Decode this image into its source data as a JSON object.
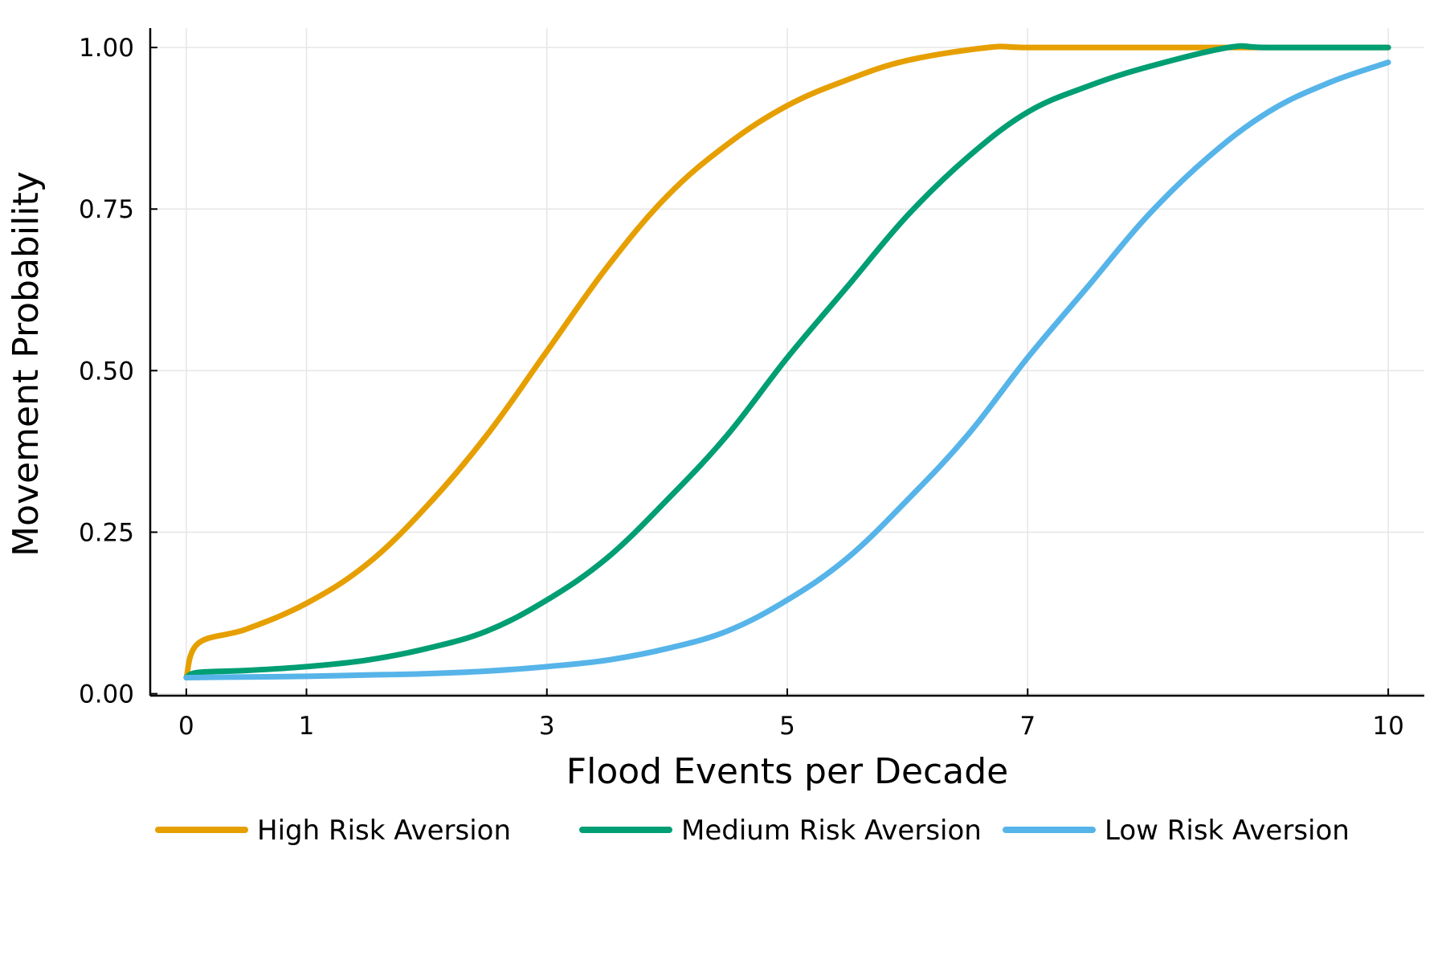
{
  "chart_data": {
    "type": "line",
    "title": "",
    "xlabel": "Flood Events per Decade",
    "ylabel": "Movement Probability",
    "xlim": [
      -0.3,
      10.3
    ],
    "ylim": [
      -0.003,
      1.03
    ],
    "xticks": [
      0,
      1,
      3,
      5,
      7,
      10
    ],
    "xtick_labels": [
      "0",
      "1",
      "3",
      "5",
      "7",
      "10"
    ],
    "yticks": [
      0,
      0.25,
      0.5,
      0.75,
      1.0
    ],
    "ytick_labels": [
      "0.00",
      "0.25",
      "0.50",
      "0.75",
      "1.00"
    ],
    "grid": true,
    "legend_position": "bottom",
    "series": [
      {
        "name": "High Risk Aversion",
        "color": "#E69F00",
        "x": [
          0,
          0.1,
          0.5,
          1,
          1.5,
          2,
          2.5,
          3,
          3.5,
          4,
          4.5,
          5,
          5.5,
          6,
          6.67,
          7,
          8,
          9,
          10
        ],
        "y": [
          0.025,
          0.078,
          0.1,
          0.14,
          0.2,
          0.29,
          0.4,
          0.53,
          0.66,
          0.77,
          0.85,
          0.91,
          0.95,
          0.98,
          1.0,
          1.0,
          1.0,
          1.0,
          1.0
        ]
      },
      {
        "name": "Medium Risk Aversion",
        "color": "#009E73",
        "x": [
          0,
          0.1,
          0.5,
          1,
          1.5,
          2,
          2.5,
          3,
          3.5,
          4,
          4.5,
          5,
          5.5,
          6,
          6.5,
          7,
          7.5,
          8,
          8.67,
          9,
          10
        ],
        "y": [
          0.025,
          0.033,
          0.036,
          0.042,
          0.052,
          0.07,
          0.097,
          0.145,
          0.21,
          0.3,
          0.4,
          0.52,
          0.63,
          0.74,
          0.83,
          0.9,
          0.94,
          0.97,
          1.0,
          1.0,
          1.0
        ]
      },
      {
        "name": "Low Risk Aversion",
        "color": "#56B4E9",
        "x": [
          0,
          0.5,
          1,
          1.5,
          2,
          2.5,
          3,
          3.5,
          4,
          4.5,
          5,
          5.5,
          6,
          6.5,
          7,
          7.5,
          8,
          8.5,
          9,
          9.5,
          10
        ],
        "y": [
          0.025,
          0.026,
          0.027,
          0.029,
          0.031,
          0.035,
          0.042,
          0.052,
          0.07,
          0.097,
          0.145,
          0.21,
          0.3,
          0.4,
          0.52,
          0.63,
          0.74,
          0.83,
          0.9,
          0.945,
          0.977
        ]
      }
    ]
  }
}
